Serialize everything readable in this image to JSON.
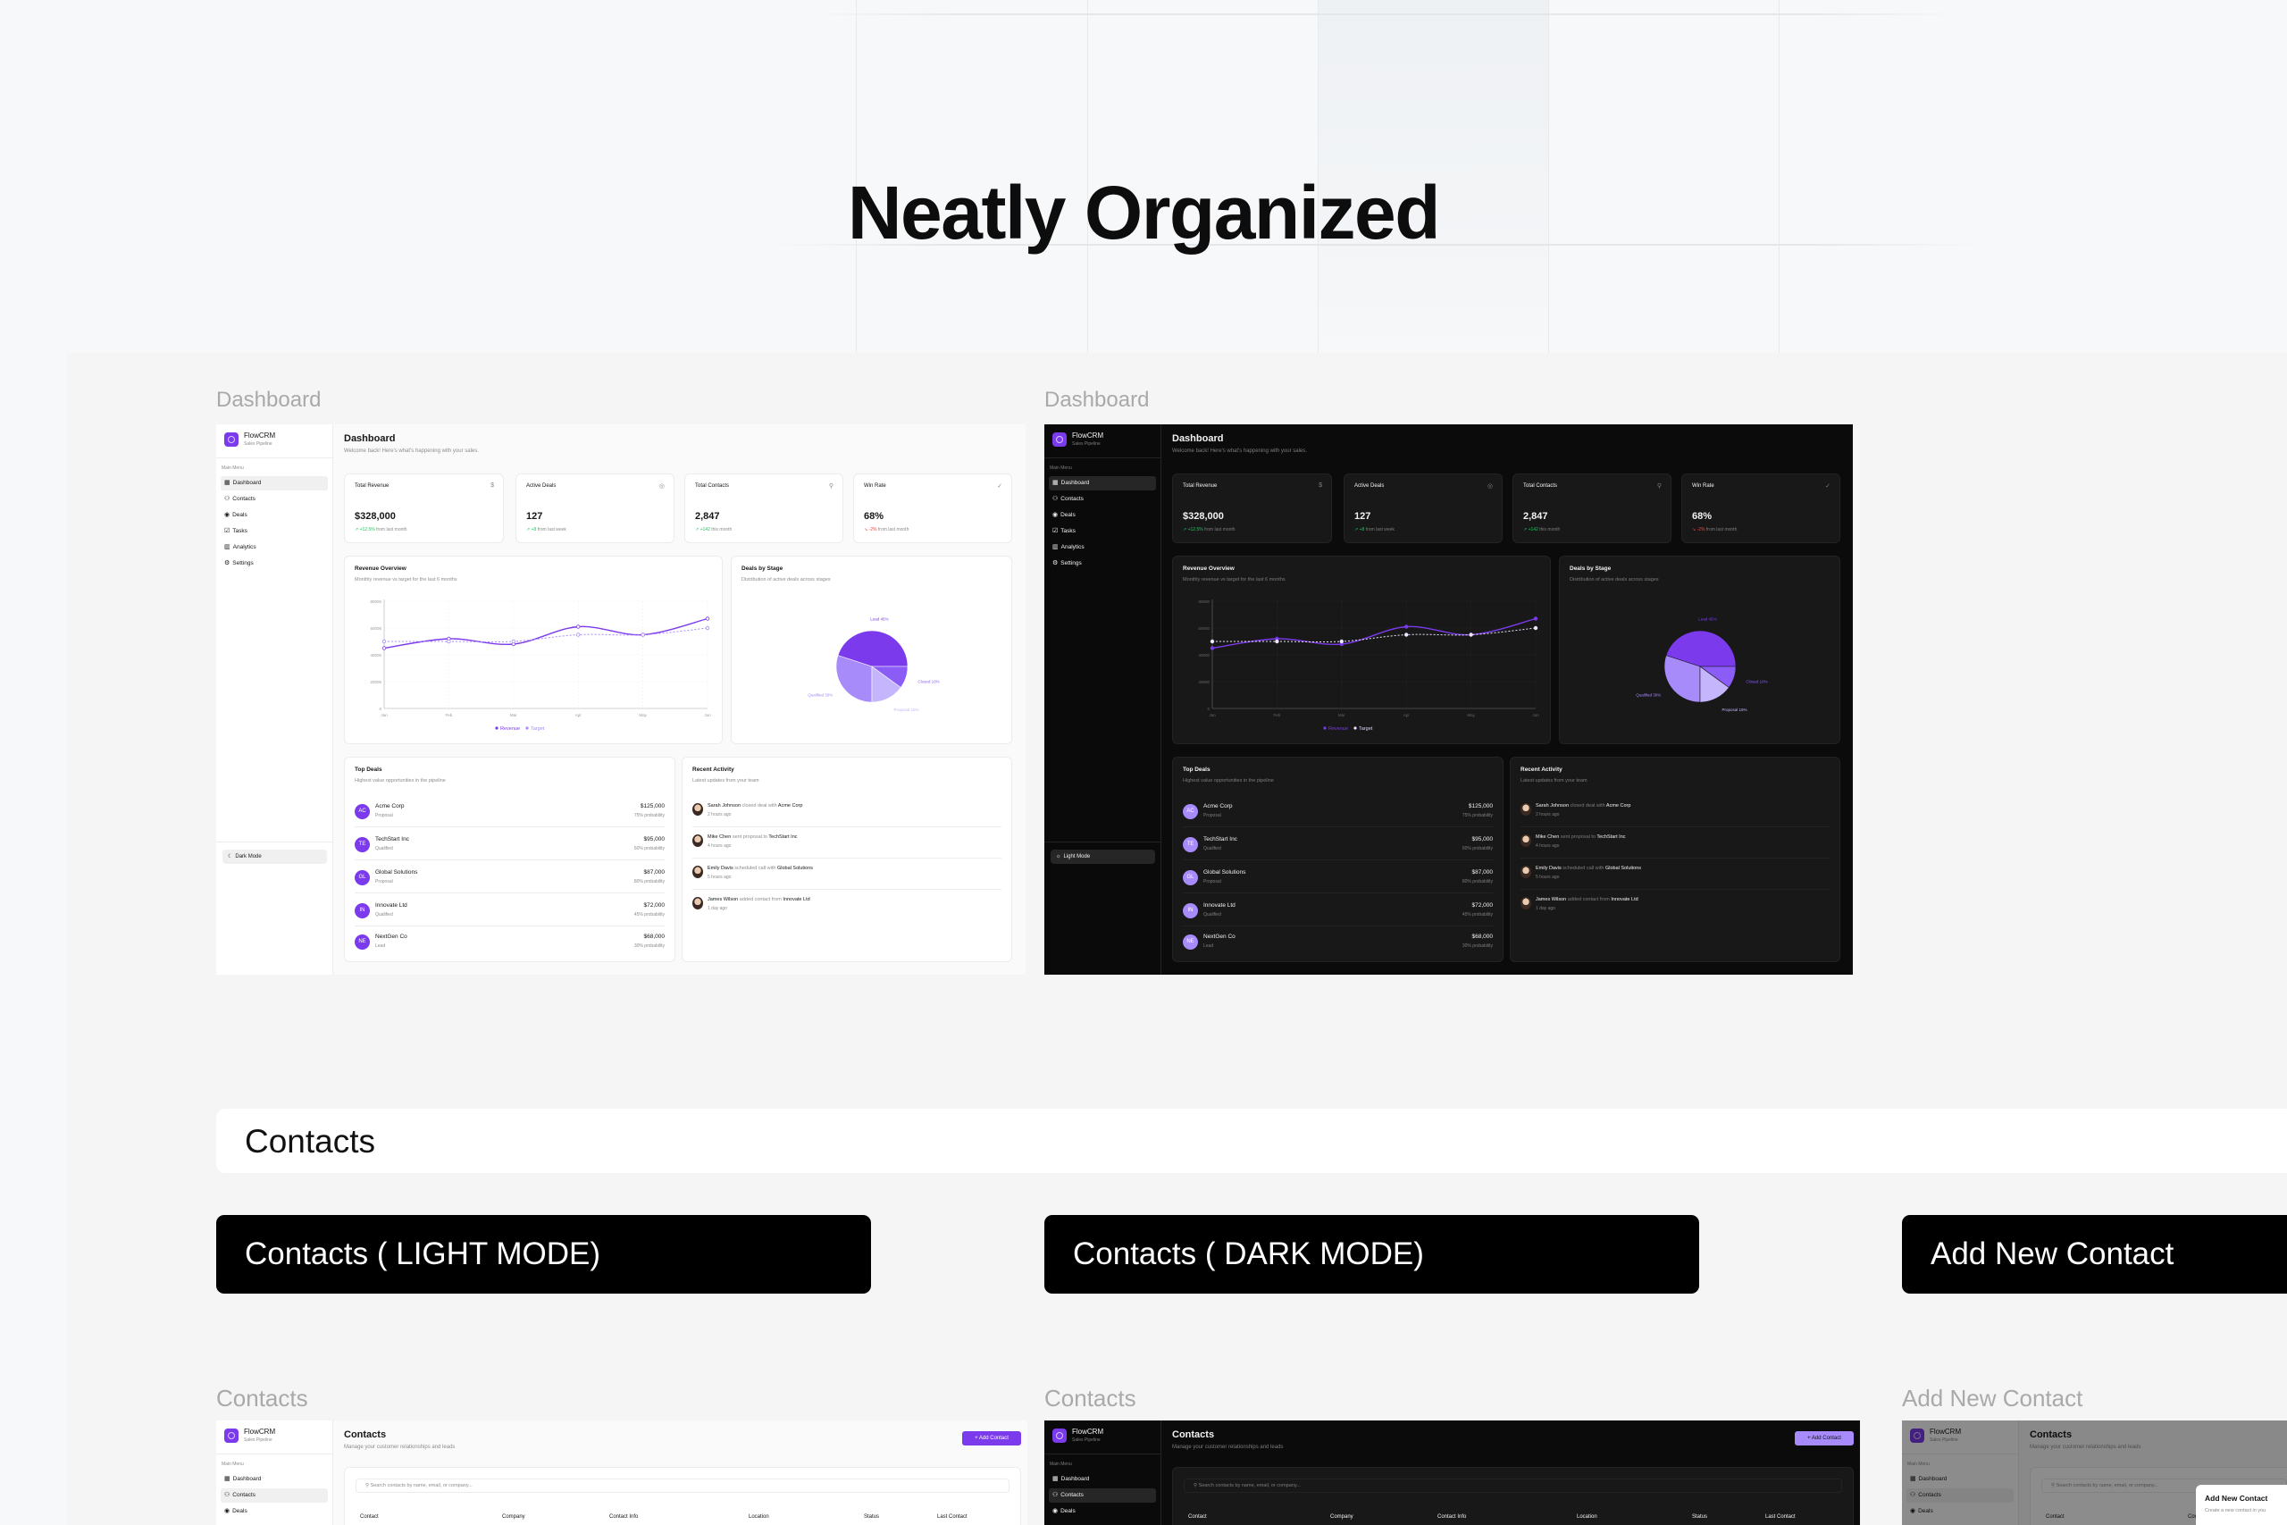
{
  "hero": {
    "title": "Neatly Organized"
  },
  "sections": {
    "dashboard_light_label": "Dashboard",
    "dashboard_dark_label": "Dashboard",
    "contacts_heading": "Contacts",
    "mode_buttons": [
      "Contacts ( LIGHT MODE)",
      "Contacts ( DARK MODE)",
      "Add New Contact"
    ],
    "contacts_light_label": "Contacts",
    "contacts_dark_label": "Contacts",
    "add_contact_label": "Add New Contact"
  },
  "colors": {
    "brand": "#7c3aed",
    "positive": "#22c55e",
    "negative": "#ef4444"
  },
  "app": {
    "name": "FlowCRM",
    "tagline": "Sales Pipeline",
    "menu_label": "Main Menu",
    "nav": [
      {
        "label": "Dashboard",
        "icon": "grid-icon"
      },
      {
        "label": "Contacts",
        "icon": "users-icon"
      },
      {
        "label": "Deals",
        "icon": "target-icon"
      },
      {
        "label": "Tasks",
        "icon": "clipboard-icon"
      },
      {
        "label": "Analytics",
        "icon": "bar-chart-icon"
      },
      {
        "label": "Settings",
        "icon": "gear-icon"
      }
    ],
    "dark_mode": "Dark Mode",
    "light_mode": "Light Mode"
  },
  "dashboard": {
    "title": "Dashboard",
    "subtitle": "Welcome back! Here's what's happening with your sales.",
    "stats": [
      {
        "title": "Total Revenue",
        "icon": "dollar-icon",
        "value": "$328,000",
        "change": "+12.5%",
        "note": "from last month",
        "trend": "up"
      },
      {
        "title": "Active Deals",
        "icon": "target-icon",
        "value": "127",
        "change": "+8",
        "note": "from last week",
        "trend": "up"
      },
      {
        "title": "Total Contacts",
        "icon": "user-icon",
        "value": "2,847",
        "change": "+142",
        "note": "this month",
        "trend": "up"
      },
      {
        "title": "Win Rate",
        "icon": "check-circle-icon",
        "value": "68%",
        "change": "-2%",
        "note": "from last month",
        "trend": "down"
      }
    ],
    "revenue": {
      "title": "Revenue Overview",
      "subtitle": "Monthly revenue vs target for the last 6 months"
    },
    "stages": {
      "title": "Deals by Stage",
      "subtitle": "Distribution of active deals across stages"
    },
    "top_deals": {
      "title": "Top Deals",
      "subtitle": "Highest value opportunities in the pipeline",
      "rows": [
        {
          "initials": "AC",
          "name": "Acme Corp",
          "stage": "Proposal",
          "amount": "$125,000",
          "probability": "75% probability"
        },
        {
          "initials": "TE",
          "name": "TechStart Inc",
          "stage": "Qualified",
          "amount": "$95,000",
          "probability": "60% probability"
        },
        {
          "initials": "GL",
          "name": "Global Solutions",
          "stage": "Proposal",
          "amount": "$87,000",
          "probability": "80% probability"
        },
        {
          "initials": "IN",
          "name": "Innovate Ltd",
          "stage": "Qualified",
          "amount": "$72,000",
          "probability": "45% probability"
        },
        {
          "initials": "NE",
          "name": "NextGen Co",
          "stage": "Lead",
          "amount": "$68,000",
          "probability": "30% probability"
        }
      ]
    },
    "activity": {
      "title": "Recent Activity",
      "subtitle": "Latest updates from your team",
      "rows": [
        {
          "user": "Sarah Johnson",
          "action": "closed deal with",
          "target": "Acme Corp",
          "time": "2 hours ago"
        },
        {
          "user": "Mike Chen",
          "action": "sent proposal to",
          "target": "TechStart Inc",
          "time": "4 hours ago"
        },
        {
          "user": "Emily Davis",
          "action": "scheduled call with",
          "target": "Global Solutions",
          "time": "5 hours ago"
        },
        {
          "user": "James Wilson",
          "action": "added contact from",
          "target": "Innovate Ltd",
          "time": "1 day ago"
        }
      ]
    }
  },
  "chart_data": [
    {
      "type": "line",
      "categories": [
        "Jan",
        "Feb",
        "Mar",
        "Apr",
        "May",
        "Jun"
      ],
      "series": [
        {
          "name": "Revenue",
          "values": [
            45000,
            52000,
            48000,
            61000,
            55000,
            67000
          ],
          "color": "#7c3aed",
          "style": "solid"
        },
        {
          "name": "Target",
          "values": [
            50000,
            50000,
            50000,
            55000,
            55000,
            60000
          ],
          "color": "#a78bfa",
          "style": "dashed"
        }
      ],
      "yticks": [
        0,
        20000,
        40000,
        60000,
        80000
      ],
      "ylim": [
        0,
        80000
      ],
      "grid": true,
      "legend": "bottom"
    },
    {
      "type": "pie",
      "slices": [
        {
          "name": "Lead",
          "value": 45,
          "color": "#7c3aed"
        },
        {
          "name": "Qualified",
          "value": 30,
          "color": "#a78bfa"
        },
        {
          "name": "Proposal",
          "value": 15,
          "color": "#c4b5fd"
        },
        {
          "name": "Closed",
          "value": 10,
          "color": "#8b5cf6"
        }
      ],
      "unit": "%"
    }
  ],
  "contacts": {
    "title": "Contacts",
    "subtitle": "Manage your customer relationships and leads",
    "add_button": "+ Add Contact",
    "search_placeholder": "Search contacts by name, email, or company...",
    "columns": [
      "Contact",
      "Company",
      "Contact Info",
      "Location",
      "Status",
      "Last Contact"
    ]
  },
  "modal": {
    "title": "Add New Contact",
    "subtitle": "Create a new contact in you"
  }
}
